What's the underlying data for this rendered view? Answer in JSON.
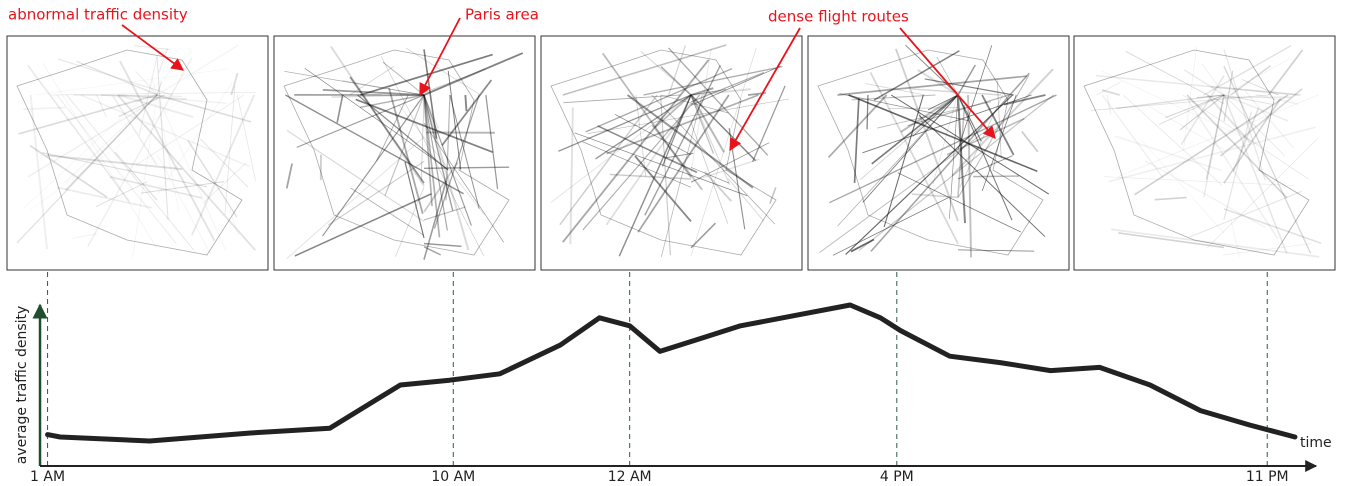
{
  "chart_data": {
    "type": "line",
    "y_label": "average traffic density",
    "x_label": "time",
    "annotations": [
      "abnormal traffic density",
      "Paris area",
      "dense flight routes"
    ],
    "xlim": [
      0,
      100
    ],
    "ylim": [
      0,
      100
    ],
    "xticks": [
      {
        "value": 0.6,
        "label": "1 AM"
      },
      {
        "value": 32.8,
        "label": "10 AM"
      },
      {
        "value": 46.8,
        "label": "12 AM"
      },
      {
        "value": 68,
        "label": "4 PM"
      },
      {
        "value": 97.4,
        "label": "11 PM"
      }
    ],
    "x": [
      0.6,
      1.6,
      8.7,
      16.7,
      23,
      28.6,
      32.5,
      36.5,
      41.3,
      44.4,
      46.8,
      49.2,
      52.4,
      55.6,
      60.3,
      64.3,
      66.7,
      68.3,
      72.2,
      76.2,
      80.2,
      84.1,
      88.1,
      92.1,
      96,
      99.6
    ],
    "series": [
      {
        "color": "#222222",
        "values": [
          19,
          17.5,
          15,
          20,
          23,
          50,
          53,
          57,
          75,
          92,
          87,
          71,
          79,
          87,
          94,
          100,
          92,
          84,
          68,
          64,
          59,
          61,
          50,
          34,
          25,
          17.5
        ]
      }
    ]
  }
}
